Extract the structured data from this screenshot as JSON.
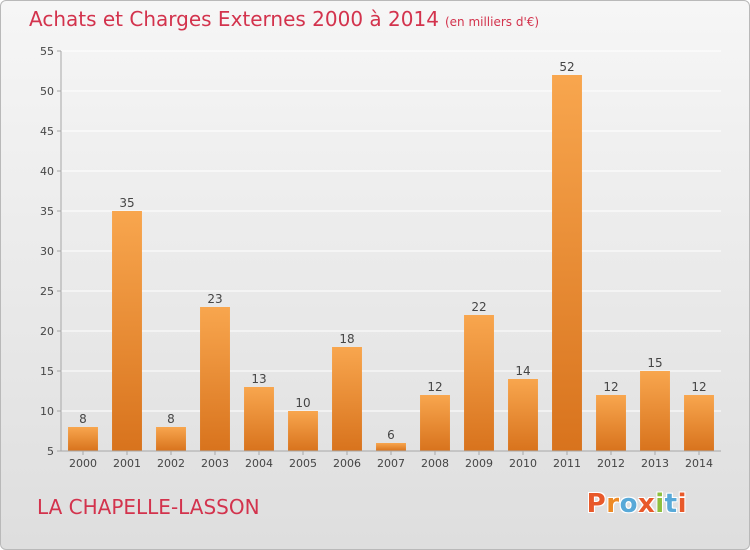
{
  "title": "Achats et Charges Externes 2000 à 2014",
  "unit": "(en milliers d'€)",
  "footer": {
    "place": "LA CHAPELLE-LASSON",
    "brand": "Proxiti"
  },
  "colors": {
    "bar_light": "#f8a64e",
    "bar_dark": "#d8731d",
    "title": "#d3334d",
    "logo": [
      "#e8592a",
      "#ed8a25",
      "#58a9d8",
      "#e8592a",
      "#8dbf3e",
      "#58a9d8",
      "#e8592a"
    ]
  },
  "chart_data": {
    "type": "bar",
    "title": "Achats et Charges Externes 2000 à 2014",
    "subtitle": "(en milliers d'€)",
    "xlabel": "",
    "ylabel": "",
    "categories": [
      "2000",
      "2001",
      "2002",
      "2003",
      "2004",
      "2005",
      "2006",
      "2007",
      "2008",
      "2009",
      "2010",
      "2011",
      "2012",
      "2013",
      "2014"
    ],
    "values": [
      8,
      35,
      8,
      23,
      13,
      10,
      18,
      6,
      12,
      22,
      14,
      52,
      12,
      15,
      12
    ],
    "ylim": [
      5,
      55
    ],
    "yticks": [
      5,
      10,
      15,
      20,
      25,
      30,
      35,
      40,
      45,
      50,
      55
    ],
    "grid": true,
    "data_labels": true
  }
}
